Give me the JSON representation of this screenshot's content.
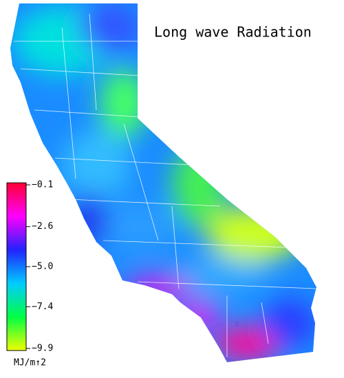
{
  "title": "Long wave Radiation",
  "colorbar": {
    "label": "MJ/m↑2",
    "lim": [
      -9.9,
      -0.1
    ],
    "ticks": [
      {
        "value": -0.1,
        "label": "−0.1"
      },
      {
        "value": -2.6,
        "label": "−2.6"
      },
      {
        "value": -5.0,
        "label": "−5.0"
      },
      {
        "value": -7.4,
        "label": "−7.4"
      },
      {
        "value": -9.9,
        "label": "−9.9"
      }
    ],
    "colors": [
      "#ff0033",
      "#ff00ff",
      "#2222ff",
      "#00ccff",
      "#00ff44",
      "#eeff00"
    ]
  }
}
